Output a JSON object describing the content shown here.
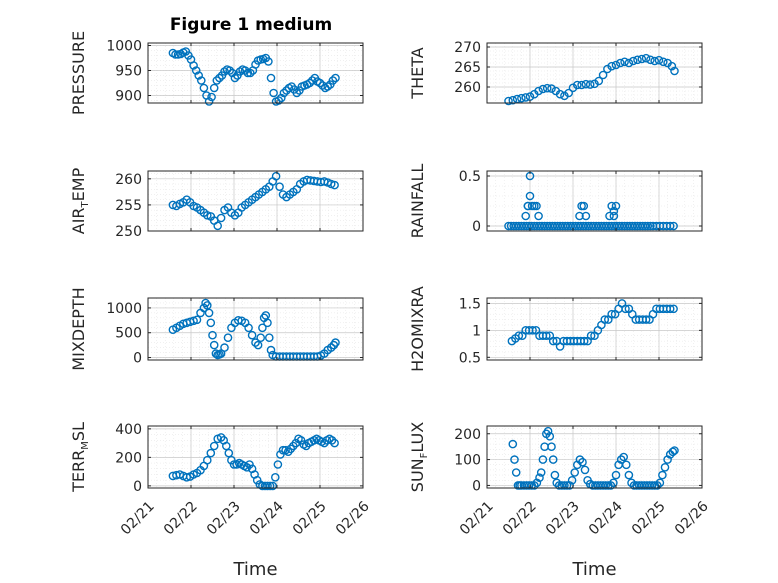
{
  "figure_title": "Figure 1 medium",
  "colors": {
    "marker": "#0072BD",
    "axis": "#262626",
    "grid": "#C8C8C8"
  },
  "chart_data": [
    {
      "id": "pressure",
      "type": "scatter",
      "title": "Figure 1 medium",
      "ylabel": "PRESSURE",
      "ylabel_main": "PRESSURE",
      "ylabel_sub": "",
      "ylabel_tail": "",
      "xlabel": "",
      "ylim": [
        885,
        1005
      ],
      "yticks": [
        900,
        950,
        1000
      ],
      "xlim": [
        0,
        5
      ],
      "xticks": [
        0,
        1,
        2,
        3,
        4,
        5
      ],
      "xticklabels": [],
      "grid": true,
      "x": [
        0.58,
        0.64,
        0.7,
        0.76,
        0.82,
        0.88,
        0.94,
        1.0,
        1.06,
        1.12,
        1.18,
        1.24,
        1.3,
        1.36,
        1.42,
        1.48,
        1.54,
        1.6,
        1.66,
        1.72,
        1.78,
        1.84,
        1.9,
        1.96,
        2.02,
        2.08,
        2.14,
        2.2,
        2.26,
        2.32,
        2.38,
        2.44,
        2.5,
        2.56,
        2.62,
        2.68,
        2.74,
        2.8,
        2.86,
        2.92,
        2.98,
        3.04,
        3.1,
        3.16,
        3.22,
        3.28,
        3.34,
        3.4,
        3.46,
        3.52,
        3.58,
        3.64,
        3.7,
        3.76,
        3.82,
        3.88,
        3.94,
        4.0,
        4.06,
        4.12,
        4.18,
        4.24,
        4.3,
        4.36
      ],
      "y": [
        985,
        982,
        982,
        983,
        986,
        988,
        980,
        972,
        960,
        950,
        940,
        930,
        915,
        900,
        888,
        897,
        915,
        930,
        935,
        940,
        948,
        952,
        950,
        945,
        935,
        940,
        948,
        952,
        950,
        945,
        945,
        950,
        962,
        970,
        972,
        973,
        975,
        968,
        935,
        905,
        888,
        890,
        895,
        905,
        910,
        915,
        918,
        912,
        905,
        910,
        918,
        920,
        922,
        925,
        930,
        935,
        928,
        925,
        920,
        915,
        918,
        922,
        930,
        935
      ]
    },
    {
      "id": "theta",
      "type": "scatter",
      "ylabel": "THETA",
      "ylabel_main": "THETA",
      "ylabel_sub": "",
      "ylabel_tail": "",
      "xlabel": "",
      "ylim": [
        256,
        271
      ],
      "yticks": [
        260,
        265,
        270
      ],
      "xlim": [
        0,
        5
      ],
      "xticks": [
        0,
        1,
        2,
        3,
        4,
        5
      ],
      "xticklabels": [],
      "grid": true,
      "x": [
        0.5,
        0.6,
        0.7,
        0.8,
        0.9,
        1.0,
        1.1,
        1.2,
        1.3,
        1.4,
        1.5,
        1.6,
        1.7,
        1.8,
        1.9,
        2.0,
        2.1,
        2.2,
        2.3,
        2.4,
        2.5,
        2.6,
        2.7,
        2.8,
        2.9,
        3.0,
        3.1,
        3.2,
        3.3,
        3.4,
        3.5,
        3.6,
        3.7,
        3.8,
        3.9,
        4.0,
        4.1,
        4.2,
        4.3,
        4.36
      ],
      "y": [
        256.5,
        256.7,
        257.0,
        257.2,
        257.4,
        257.6,
        258.2,
        259.0,
        259.5,
        259.7,
        259.6,
        259.0,
        258.2,
        257.8,
        258.5,
        259.8,
        260.5,
        260.5,
        260.7,
        260.6,
        260.8,
        261.5,
        263.0,
        264.5,
        265.2,
        265.5,
        266.0,
        266.3,
        266.0,
        266.5,
        266.8,
        267.0,
        267.2,
        266.8,
        266.5,
        266.7,
        266.3,
        266.0,
        265.2,
        264.0
      ]
    },
    {
      "id": "air_temp",
      "type": "scatter",
      "ylabel": "AIR_TEMP",
      "ylabel_main": "AIR",
      "ylabel_sub": "T",
      "ylabel_tail": "EMP",
      "xlabel": "",
      "ylim": [
        250,
        261.5
      ],
      "yticks": [
        250,
        255,
        260
      ],
      "xlim": [
        0,
        5
      ],
      "xticks": [
        0,
        1,
        2,
        3,
        4,
        5
      ],
      "xticklabels": [],
      "grid": true,
      "x": [
        0.58,
        0.66,
        0.74,
        0.82,
        0.9,
        0.98,
        1.06,
        1.14,
        1.22,
        1.3,
        1.38,
        1.46,
        1.54,
        1.62,
        1.7,
        1.78,
        1.86,
        1.94,
        2.02,
        2.1,
        2.18,
        2.26,
        2.34,
        2.42,
        2.5,
        2.58,
        2.66,
        2.74,
        2.82,
        2.9,
        2.98,
        3.06,
        3.14,
        3.22,
        3.3,
        3.38,
        3.46,
        3.54,
        3.62,
        3.7,
        3.78,
        3.86,
        3.94,
        4.02,
        4.1,
        4.18,
        4.26,
        4.34
      ],
      "y": [
        255.0,
        254.8,
        255.2,
        255.5,
        256.0,
        255.5,
        254.8,
        254.5,
        254.0,
        253.5,
        253.0,
        252.8,
        252.0,
        251.0,
        252.5,
        254.0,
        254.5,
        253.5,
        253.0,
        253.5,
        254.5,
        255.0,
        255.5,
        256.0,
        256.5,
        257.0,
        257.5,
        258.0,
        258.5,
        259.5,
        260.5,
        258.5,
        257.0,
        256.5,
        257.0,
        257.5,
        258.0,
        259.0,
        259.5,
        259.8,
        259.7,
        259.6,
        259.5,
        259.4,
        259.5,
        259.3,
        259.0,
        258.8
      ]
    },
    {
      "id": "rainfall",
      "type": "scatter",
      "ylabel": "RAINFALL",
      "ylabel_main": "RAINFALL",
      "ylabel_sub": "",
      "ylabel_tail": "",
      "xlabel": "",
      "ylim": [
        -0.05,
        0.55
      ],
      "yticks": [
        0,
        0.5
      ],
      "xlim": [
        0,
        5
      ],
      "xticks": [
        0,
        1,
        2,
        3,
        4,
        5
      ],
      "xticklabels": [],
      "grid": true,
      "x": [
        0.5,
        0.56,
        0.62,
        0.68,
        0.74,
        0.8,
        0.86,
        0.92,
        0.98,
        1.04,
        1.1,
        1.16,
        1.22,
        1.28,
        1.34,
        1.4,
        1.46,
        1.52,
        1.58,
        1.64,
        1.7,
        1.76,
        1.82,
        1.88,
        1.94,
        2.0,
        2.06,
        2.12,
        2.18,
        2.24,
        2.3,
        2.36,
        2.42,
        2.48,
        2.54,
        2.6,
        2.66,
        2.72,
        2.78,
        2.84,
        2.9,
        2.96,
        3.02,
        3.08,
        3.14,
        3.2,
        3.26,
        3.32,
        3.38,
        3.44,
        3.5,
        3.56,
        3.62,
        3.68,
        3.74,
        3.8,
        3.86,
        3.94,
        4.02,
        4.1,
        4.18,
        4.26,
        4.34,
        0.9,
        0.95,
        1.0,
        1.05,
        1.1,
        1.15,
        1.2,
        1.0,
        0.95,
        2.15,
        2.2,
        2.25,
        2.3,
        2.85,
        2.9,
        2.95,
        3.0,
        2.95
      ],
      "y": [
        0,
        0,
        0,
        0,
        0,
        0,
        0,
        0,
        0,
        0,
        0,
        0,
        0,
        0,
        0,
        0,
        0,
        0,
        0,
        0,
        0,
        0,
        0,
        0,
        0,
        0,
        0,
        0,
        0,
        0,
        0,
        0,
        0,
        0,
        0,
        0,
        0,
        0,
        0,
        0,
        0,
        0,
        0,
        0,
        0,
        0,
        0,
        0,
        0,
        0,
        0,
        0,
        0,
        0,
        0,
        0,
        0,
        0,
        0,
        0,
        0,
        0,
        0,
        0.1,
        0.2,
        0.5,
        0.2,
        0.2,
        0.2,
        0.1,
        0.3,
        0.2,
        0.1,
        0.2,
        0.2,
        0.1,
        0.1,
        0.2,
        0.1,
        0.2,
        0.15
      ]
    },
    {
      "id": "mixdepth",
      "type": "scatter",
      "ylabel": "MIXDEPTH",
      "ylabel_main": "MIXDEPTH",
      "ylabel_sub": "",
      "ylabel_tail": "",
      "xlabel": "",
      "ylim": [
        -50,
        1200
      ],
      "yticks": [
        0,
        500,
        1000
      ],
      "xlim": [
        0,
        5
      ],
      "xticks": [
        0,
        1,
        2,
        3,
        4,
        5
      ],
      "xticklabels": [],
      "grid": true,
      "x": [
        0.58,
        0.66,
        0.74,
        0.82,
        0.9,
        0.98,
        1.06,
        1.14,
        1.22,
        1.3,
        1.34,
        1.38,
        1.42,
        1.46,
        1.5,
        1.54,
        1.58,
        1.62,
        1.66,
        1.7,
        1.78,
        1.86,
        1.94,
        2.02,
        2.1,
        2.18,
        2.26,
        2.34,
        2.42,
        2.5,
        2.56,
        2.62,
        2.66,
        2.7,
        2.74,
        2.78,
        2.82,
        2.86,
        2.9,
        2.98,
        3.06,
        3.14,
        3.22,
        3.3,
        3.38,
        3.46,
        3.54,
        3.62,
        3.7,
        3.78,
        3.86,
        3.94,
        4.02,
        4.1,
        4.18,
        4.26,
        4.32,
        4.36
      ],
      "y": [
        560,
        600,
        640,
        680,
        700,
        720,
        740,
        760,
        900,
        1000,
        1100,
        1050,
        900,
        700,
        450,
        250,
        80,
        50,
        60,
        80,
        200,
        400,
        600,
        700,
        750,
        740,
        700,
        600,
        450,
        300,
        250,
        400,
        600,
        800,
        850,
        700,
        400,
        150,
        50,
        20,
        20,
        20,
        20,
        20,
        20,
        20,
        20,
        20,
        20,
        20,
        20,
        20,
        40,
        80,
        150,
        200,
        250,
        300
      ]
    },
    {
      "id": "h2omixra",
      "type": "scatter",
      "ylabel": "H2OMIXRA",
      "ylabel_main": "H2OMIXRA",
      "ylabel_sub": "",
      "ylabel_tail": "",
      "xlabel": "",
      "ylim": [
        0.45,
        1.6
      ],
      "yticks": [
        0.5,
        1,
        1.5
      ],
      "xlim": [
        0,
        5
      ],
      "xticks": [
        0,
        1,
        2,
        3,
        4,
        5
      ],
      "xticklabels": [],
      "grid": true,
      "x": [
        0.58,
        0.66,
        0.74,
        0.82,
        0.9,
        0.98,
        1.06,
        1.14,
        1.22,
        1.3,
        1.38,
        1.46,
        1.54,
        1.62,
        1.7,
        1.78,
        1.86,
        1.94,
        2.02,
        2.1,
        2.18,
        2.26,
        2.34,
        2.42,
        2.5,
        2.58,
        2.66,
        2.74,
        2.82,
        2.9,
        2.98,
        3.06,
        3.14,
        3.22,
        3.3,
        3.38,
        3.46,
        3.54,
        3.62,
        3.7,
        3.78,
        3.86,
        3.94,
        4.02,
        4.1,
        4.18,
        4.26,
        4.34
      ],
      "y": [
        0.8,
        0.85,
        0.9,
        0.9,
        1.0,
        1.0,
        1.0,
        1.0,
        0.9,
        0.9,
        0.9,
        0.9,
        0.8,
        0.8,
        0.7,
        0.8,
        0.8,
        0.8,
        0.8,
        0.8,
        0.8,
        0.8,
        0.8,
        0.9,
        0.9,
        1.0,
        1.1,
        1.2,
        1.2,
        1.3,
        1.3,
        1.4,
        1.5,
        1.4,
        1.4,
        1.3,
        1.2,
        1.2,
        1.2,
        1.2,
        1.2,
        1.3,
        1.4,
        1.4,
        1.4,
        1.4,
        1.4,
        1.4
      ]
    },
    {
      "id": "terr_msl",
      "type": "scatter",
      "ylabel": "TERR_MSL",
      "ylabel_main": "TERR",
      "ylabel_sub": "M",
      "ylabel_tail": "SL",
      "xlabel": "Time",
      "ylim": [
        -15,
        420
      ],
      "yticks": [
        0,
        200,
        400
      ],
      "xlim": [
        0,
        5
      ],
      "xticks": [
        0,
        1,
        2,
        3,
        4,
        5
      ],
      "xticklabels": [
        "02/21",
        "02/22",
        "02/23",
        "02/24",
        "02/25",
        "02/26"
      ],
      "grid": true,
      "x": [
        0.58,
        0.66,
        0.74,
        0.82,
        0.9,
        0.98,
        1.06,
        1.14,
        1.22,
        1.3,
        1.38,
        1.46,
        1.54,
        1.62,
        1.7,
        1.76,
        1.82,
        1.88,
        1.94,
        2.0,
        2.06,
        2.12,
        2.18,
        2.24,
        2.3,
        2.36,
        2.42,
        2.48,
        2.54,
        2.6,
        2.66,
        2.72,
        2.78,
        2.84,
        2.9,
        2.96,
        3.02,
        3.08,
        3.14,
        3.2,
        3.26,
        3.32,
        3.38,
        3.44,
        3.5,
        3.56,
        3.62,
        3.68,
        3.74,
        3.8,
        3.86,
        3.92,
        3.98,
        4.04,
        4.1,
        4.16,
        4.22,
        4.28,
        4.34
      ],
      "y": [
        70,
        75,
        80,
        70,
        60,
        65,
        80,
        90,
        110,
        140,
        180,
        230,
        280,
        330,
        340,
        320,
        280,
        230,
        180,
        150,
        150,
        160,
        150,
        140,
        130,
        150,
        120,
        80,
        40,
        10,
        0,
        0,
        0,
        0,
        0,
        60,
        150,
        220,
        250,
        250,
        240,
        260,
        280,
        300,
        330,
        320,
        290,
        280,
        300,
        310,
        320,
        330,
        320,
        310,
        300,
        320,
        330,
        320,
        300
      ]
    },
    {
      "id": "sun_flux",
      "type": "scatter",
      "ylabel": "SUN_FLUX",
      "ylabel_main": "SUN",
      "ylabel_sub": "F",
      "ylabel_tail": "LUX",
      "xlabel": "Time",
      "ylim": [
        -10,
        230
      ],
      "yticks": [
        0,
        100,
        200
      ],
      "xlim": [
        0,
        5
      ],
      "xticks": [
        0,
        1,
        2,
        3,
        4,
        5
      ],
      "xticklabels": [
        "02/21",
        "02/22",
        "02/23",
        "02/24",
        "02/25",
        "02/26"
      ],
      "grid": true,
      "x": [
        0.6,
        0.64,
        0.68,
        0.72,
        0.76,
        0.8,
        0.86,
        0.92,
        0.98,
        1.04,
        1.1,
        1.16,
        1.22,
        1.26,
        1.3,
        1.34,
        1.38,
        1.42,
        1.46,
        1.5,
        1.54,
        1.58,
        1.62,
        1.68,
        1.74,
        1.8,
        1.86,
        1.92,
        1.98,
        2.04,
        2.1,
        2.16,
        2.22,
        2.28,
        2.34,
        2.4,
        2.46,
        2.52,
        2.58,
        2.64,
        2.7,
        2.76,
        2.82,
        2.88,
        2.94,
        3.0,
        3.06,
        3.12,
        3.18,
        3.24,
        3.3,
        3.36,
        3.42,
        3.48,
        3.54,
        3.6,
        3.66,
        3.72,
        3.78,
        3.84,
        3.9,
        3.96,
        4.02,
        4.08,
        4.14,
        4.2,
        4.26,
        4.32,
        4.36
      ],
      "y": [
        160,
        100,
        50,
        0,
        0,
        0,
        0,
        0,
        0,
        0,
        0,
        10,
        30,
        50,
        100,
        150,
        200,
        210,
        190,
        150,
        100,
        40,
        10,
        0,
        0,
        0,
        0,
        0,
        20,
        50,
        80,
        100,
        90,
        60,
        20,
        5,
        0,
        0,
        0,
        0,
        0,
        0,
        0,
        0,
        10,
        40,
        80,
        100,
        110,
        80,
        40,
        10,
        0,
        0,
        0,
        0,
        0,
        0,
        0,
        0,
        0,
        0,
        10,
        40,
        70,
        100,
        120,
        130,
        135
      ]
    }
  ]
}
